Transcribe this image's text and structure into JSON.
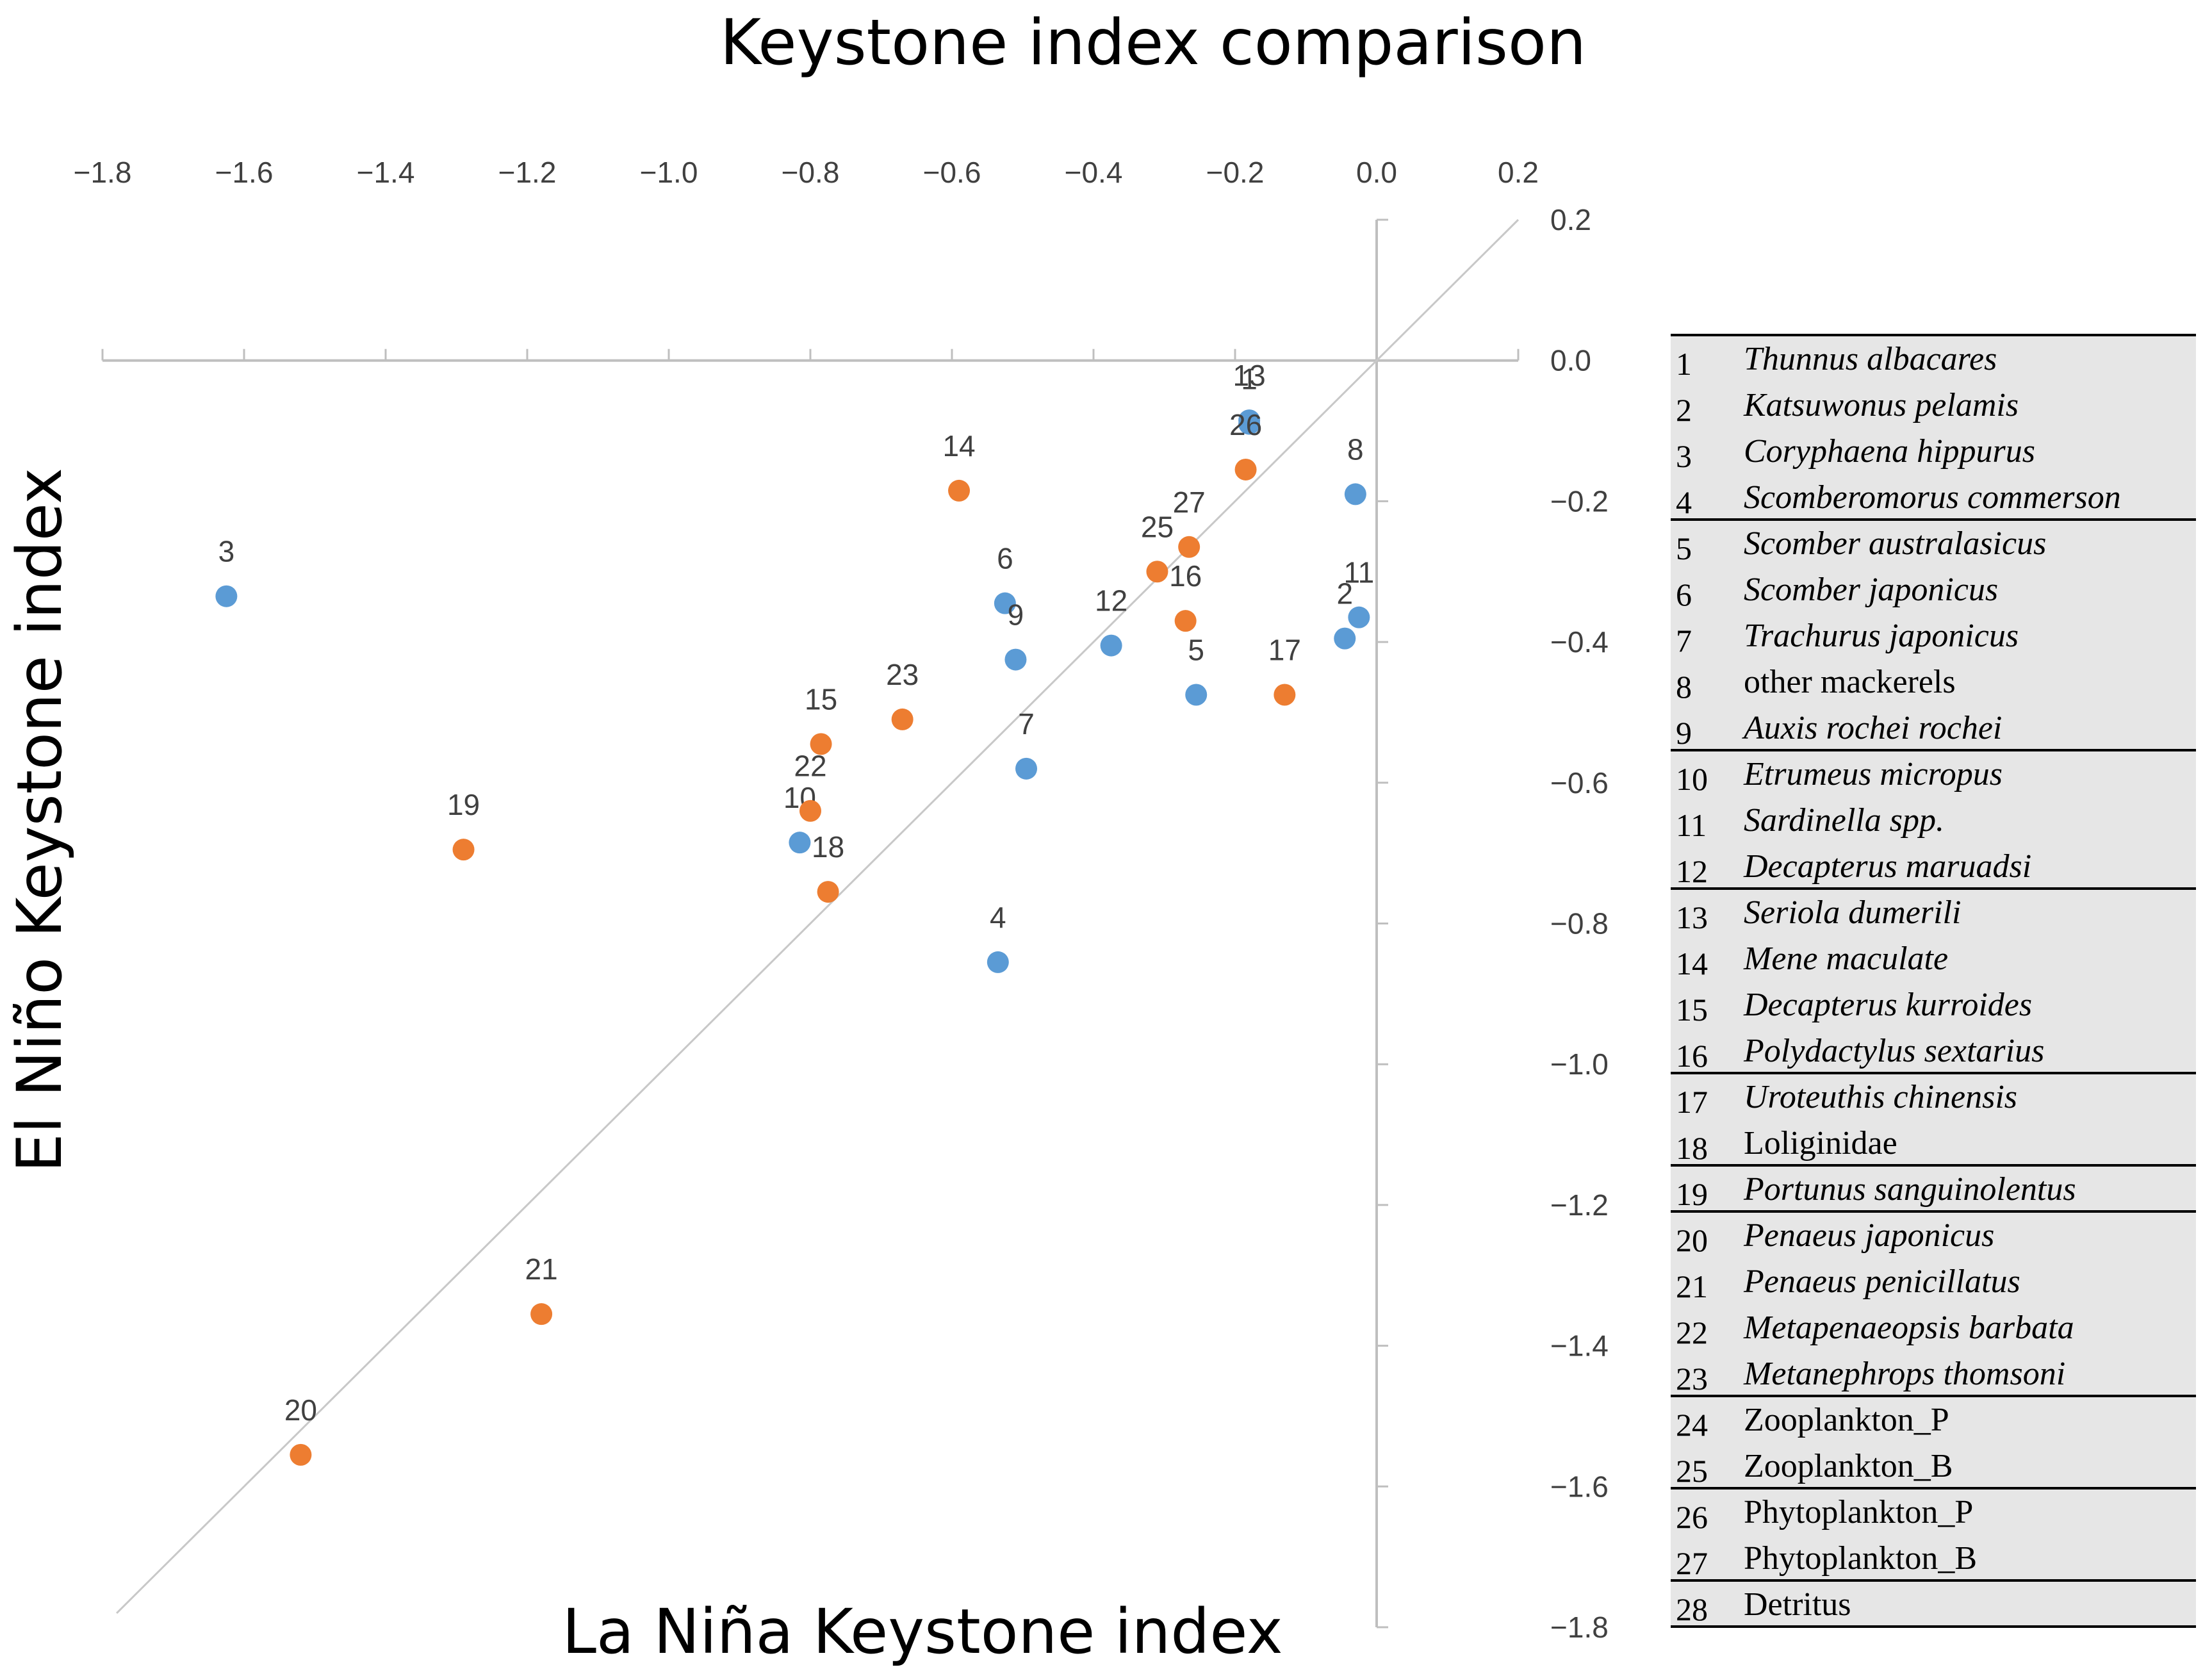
{
  "chart_data": {
    "type": "scatter",
    "title": "Keystone index comparison",
    "xlabel": "La Niña Keystone index",
    "ylabel": "El Niño Keystone index",
    "xlim": [
      -1.8,
      0.2
    ],
    "ylim": [
      -1.8,
      0.2
    ],
    "x_ticks": [
      "−1.8",
      "−1.6",
      "−1.4",
      "−1.2",
      "−1.0",
      "−0.8",
      "−0.6",
      "−0.4",
      "−0.2",
      "0.0",
      "0.2"
    ],
    "y_ticks": [
      "0.2",
      "0.0",
      "−0.2",
      "−0.4",
      "−0.6",
      "−0.8",
      "−1.0",
      "−1.2",
      "−1.4",
      "−1.6",
      "−1.8"
    ],
    "reference_line": "y = x",
    "colors": {
      "blue": "#5B9BD5",
      "orange": "#ED7D31",
      "axis": "#bfbfbf",
      "tick_text": "#404040"
    },
    "series": [
      {
        "name": "blue",
        "color": "#5B9BD5",
        "points": [
          {
            "label": "1",
            "x": -0.18,
            "y": -0.09
          },
          {
            "label": "2",
            "x": -0.045,
            "y": -0.395
          },
          {
            "label": "3",
            "x": -1.625,
            "y": -0.335
          },
          {
            "label": "4",
            "x": -0.535,
            "y": -0.855
          },
          {
            "label": "5",
            "x": -0.255,
            "y": -0.475
          },
          {
            "label": "6",
            "x": -0.525,
            "y": -0.345
          },
          {
            "label": "7",
            "x": -0.495,
            "y": -0.58
          },
          {
            "label": "8",
            "x": -0.03,
            "y": -0.19
          },
          {
            "label": "9",
            "x": -0.51,
            "y": -0.425
          },
          {
            "label": "10",
            "x": -0.815,
            "y": -0.685
          },
          {
            "label": "11",
            "x": -0.025,
            "y": -0.365
          },
          {
            "label": "12",
            "x": -0.375,
            "y": -0.405
          },
          {
            "label": "13",
            "x": -0.18,
            "y": -0.085
          }
        ]
      },
      {
        "name": "orange",
        "color": "#ED7D31",
        "points": [
          {
            "label": "14",
            "x": -0.59,
            "y": -0.185
          },
          {
            "label": "15",
            "x": -0.785,
            "y": -0.545
          },
          {
            "label": "16",
            "x": -0.27,
            "y": -0.37
          },
          {
            "label": "17",
            "x": -0.13,
            "y": -0.475
          },
          {
            "label": "18",
            "x": -0.775,
            "y": -0.755
          },
          {
            "label": "19",
            "x": -1.29,
            "y": -0.695
          },
          {
            "label": "20",
            "x": -1.52,
            "y": -1.555
          },
          {
            "label": "21",
            "x": -1.18,
            "y": -1.355
          },
          {
            "label": "22",
            "x": -0.8,
            "y": -0.64
          },
          {
            "label": "23",
            "x": -0.67,
            "y": -0.51
          },
          {
            "label": "25",
            "x": -0.31,
            "y": -0.3
          },
          {
            "label": "26",
            "x": -0.185,
            "y": -0.155
          },
          {
            "label": "27",
            "x": -0.265,
            "y": -0.265
          }
        ]
      }
    ],
    "legend_title": "",
    "legend": [
      {
        "num": "1",
        "name": "Thunnus albacares",
        "italic": true
      },
      {
        "num": "2",
        "name": "Katsuwonus pelamis",
        "italic": true
      },
      {
        "num": "3",
        "name": "Coryphaena hippurus",
        "italic": true
      },
      {
        "num": "4",
        "name": "Scomberomorus commerson",
        "italic": true
      },
      {
        "num": "5",
        "name": "Scomber australasicus",
        "italic": true
      },
      {
        "num": "6",
        "name": "Scomber japonicus",
        "italic": true
      },
      {
        "num": "7",
        "name": "Trachurus japonicus",
        "italic": true
      },
      {
        "num": "8",
        "name": "other mackerels",
        "italic": false
      },
      {
        "num": "9",
        "name": "Auxis rochei rochei",
        "italic": true
      },
      {
        "num": "10",
        "name": "Etrumeus micropus",
        "italic": true
      },
      {
        "num": "11",
        "name": "Sardinella spp.",
        "italic": true
      },
      {
        "num": "12",
        "name": "Decapterus maruadsi",
        "italic": true
      },
      {
        "num": "13",
        "name": "Seriola dumerili",
        "italic": true
      },
      {
        "num": "14",
        "name": "Mene maculate",
        "italic": true
      },
      {
        "num": "15",
        "name": "Decapterus kurroides",
        "italic": true
      },
      {
        "num": "16",
        "name": "Polydactylus sextarius",
        "italic": true
      },
      {
        "num": "17",
        "name": "Uroteuthis chinensis",
        "italic": true
      },
      {
        "num": "18",
        "name": "Loliginidae",
        "italic": false
      },
      {
        "num": "19",
        "name": "Portunus sanguinolentus",
        "italic": true
      },
      {
        "num": "20",
        "name": "Penaeus japonicus",
        "italic": true
      },
      {
        "num": "21",
        "name": "Penaeus penicillatus",
        "italic": true
      },
      {
        "num": "22",
        "name": "Metapenaeopsis barbata",
        "italic": true
      },
      {
        "num": "23",
        "name": "Metanephrops thomsoni",
        "italic": true
      },
      {
        "num": "24",
        "name": "Zooplankton_P",
        "italic": false
      },
      {
        "num": "25",
        "name": "Zooplankton_B",
        "italic": false
      },
      {
        "num": "26",
        "name": "Phytoplankton_P",
        "italic": false
      },
      {
        "num": "27",
        "name": "Phytoplankton_B",
        "italic": false
      },
      {
        "num": "28",
        "name": "Detritus",
        "italic": false
      }
    ],
    "legend_groups": [
      [
        1,
        4
      ],
      [
        5,
        9
      ],
      [
        10,
        12
      ],
      [
        13,
        16
      ],
      [
        17,
        18
      ],
      [
        19,
        19
      ],
      [
        20,
        23
      ],
      [
        24,
        25
      ],
      [
        26,
        27
      ],
      [
        28,
        28
      ]
    ]
  }
}
